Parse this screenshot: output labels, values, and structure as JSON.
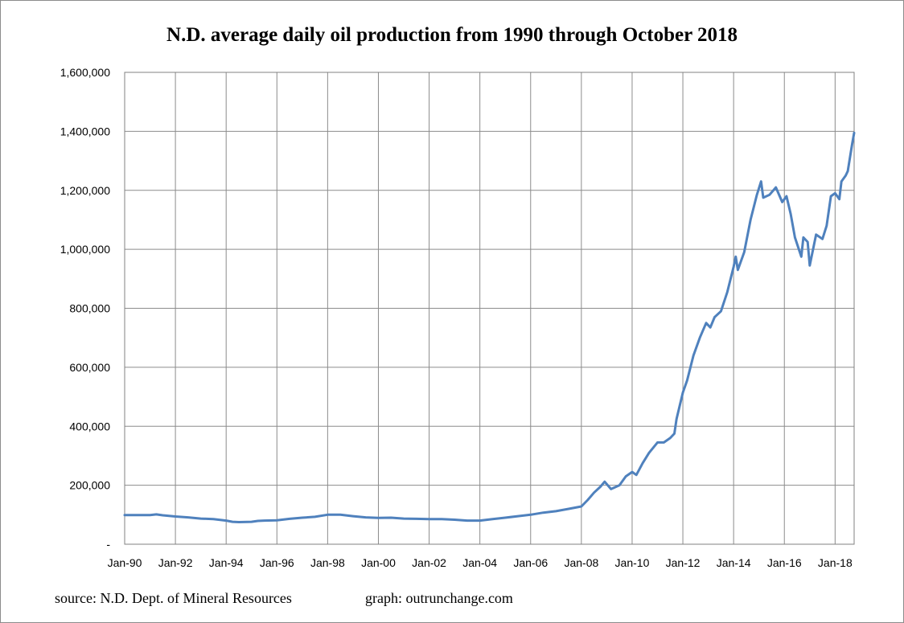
{
  "chart_data": {
    "type": "line",
    "title": "N.D. average daily oil production from 1990 through October 2018",
    "xlabel": "",
    "ylabel": "",
    "ylim": [
      0,
      1600000
    ],
    "y_ticks": [
      0,
      200000,
      400000,
      600000,
      800000,
      1000000,
      1200000,
      1400000,
      1600000
    ],
    "y_tick_labels": [
      "-",
      "200,000",
      "400,000",
      "600,000",
      "800,000",
      "1,000,000",
      "1,200,000",
      "1,400,000",
      "1,600,000"
    ],
    "x_tick_labels": [
      "Jan-90",
      "Jan-92",
      "Jan-94",
      "Jan-96",
      "Jan-98",
      "Jan-00",
      "Jan-02",
      "Jan-04",
      "Jan-06",
      "Jan-08",
      "Jan-10",
      "Jan-12",
      "Jan-14",
      "Jan-16",
      "Jan-18"
    ],
    "x_range": [
      "1990-01",
      "2018-10"
    ],
    "grid": "both",
    "legend": "none",
    "series": [
      {
        "color": "#4f81bd",
        "points": [
          [
            "1990-01",
            99000
          ],
          [
            "1990-07",
            99000
          ],
          [
            "1991-01",
            99000
          ],
          [
            "1991-04",
            101000
          ],
          [
            "1991-07",
            98000
          ],
          [
            "1992-01",
            94000
          ],
          [
            "1992-07",
            91000
          ],
          [
            "1993-01",
            87000
          ],
          [
            "1993-07",
            85000
          ],
          [
            "1994-01",
            80000
          ],
          [
            "1994-04",
            76000
          ],
          [
            "1994-07",
            75000
          ],
          [
            "1995-01",
            76000
          ],
          [
            "1995-04",
            79000
          ],
          [
            "1995-07",
            80000
          ],
          [
            "1996-01",
            81000
          ],
          [
            "1996-07",
            86000
          ],
          [
            "1997-01",
            90000
          ],
          [
            "1997-07",
            93000
          ],
          [
            "1998-01",
            100000
          ],
          [
            "1998-07",
            100000
          ],
          [
            "1999-01",
            95000
          ],
          [
            "1999-07",
            91000
          ],
          [
            "2000-01",
            89000
          ],
          [
            "2000-07",
            90000
          ],
          [
            "2001-01",
            87000
          ],
          [
            "2001-07",
            86000
          ],
          [
            "2002-01",
            85000
          ],
          [
            "2002-07",
            85000
          ],
          [
            "2003-01",
            83000
          ],
          [
            "2003-07",
            80000
          ],
          [
            "2004-01",
            80000
          ],
          [
            "2004-07",
            85000
          ],
          [
            "2005-01",
            90000
          ],
          [
            "2005-07",
            95000
          ],
          [
            "2006-01",
            100000
          ],
          [
            "2006-07",
            107000
          ],
          [
            "2007-01",
            112000
          ],
          [
            "2007-07",
            120000
          ],
          [
            "2008-01",
            128000
          ],
          [
            "2008-04",
            150000
          ],
          [
            "2008-07",
            175000
          ],
          [
            "2008-10",
            195000
          ],
          [
            "2008-12",
            212000
          ],
          [
            "2009-03",
            187000
          ],
          [
            "2009-07",
            200000
          ],
          [
            "2009-10",
            230000
          ],
          [
            "2010-01",
            245000
          ],
          [
            "2010-03",
            235000
          ],
          [
            "2010-06",
            275000
          ],
          [
            "2010-09",
            310000
          ],
          [
            "2011-01",
            345000
          ],
          [
            "2011-04",
            345000
          ],
          [
            "2011-07",
            360000
          ],
          [
            "2011-09",
            375000
          ],
          [
            "2011-10",
            425000
          ],
          [
            "2012-01",
            515000
          ],
          [
            "2012-03",
            555000
          ],
          [
            "2012-06",
            640000
          ],
          [
            "2012-09",
            700000
          ],
          [
            "2012-12",
            750000
          ],
          [
            "2013-02",
            735000
          ],
          [
            "2013-04",
            770000
          ],
          [
            "2013-07",
            790000
          ],
          [
            "2013-10",
            855000
          ],
          [
            "2014-01",
            940000
          ],
          [
            "2014-02",
            975000
          ],
          [
            "2014-03",
            930000
          ],
          [
            "2014-06",
            990000
          ],
          [
            "2014-09",
            1100000
          ],
          [
            "2014-12",
            1185000
          ],
          [
            "2015-02",
            1230000
          ],
          [
            "2015-03",
            1175000
          ],
          [
            "2015-06",
            1185000
          ],
          [
            "2015-09",
            1210000
          ],
          [
            "2015-12",
            1160000
          ],
          [
            "2016-02",
            1180000
          ],
          [
            "2016-04",
            1120000
          ],
          [
            "2016-06",
            1040000
          ],
          [
            "2016-09",
            975000
          ],
          [
            "2016-10",
            1040000
          ],
          [
            "2016-12",
            1025000
          ],
          [
            "2017-01",
            945000
          ],
          [
            "2017-04",
            1050000
          ],
          [
            "2017-07",
            1035000
          ],
          [
            "2017-09",
            1080000
          ],
          [
            "2017-11",
            1180000
          ],
          [
            "2018-01",
            1190000
          ],
          [
            "2018-03",
            1170000
          ],
          [
            "2018-04",
            1230000
          ],
          [
            "2018-06",
            1250000
          ],
          [
            "2018-07",
            1265000
          ],
          [
            "2018-09",
            1355000
          ],
          [
            "2018-10",
            1395000
          ]
        ]
      }
    ]
  },
  "footer": {
    "source": "source: N.D. Dept. of Mineral Resources",
    "graph": "graph:  outrunchange.com"
  }
}
